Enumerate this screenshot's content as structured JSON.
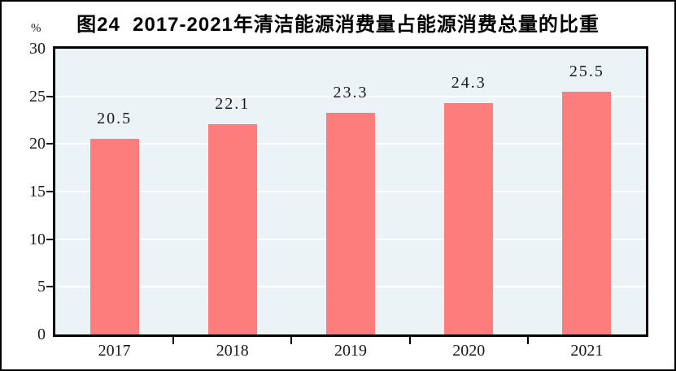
{
  "title": "图24  2017-2021年清洁能源消费量占能源消费总量的比重",
  "unit_label": "%",
  "chart_data": {
    "type": "bar",
    "title": "图24  2017-2021年清洁能源消费量占能源消费总量的比重",
    "categories": [
      "2017",
      "2018",
      "2019",
      "2020",
      "2021"
    ],
    "values": [
      20.5,
      22.1,
      23.3,
      24.3,
      25.5
    ],
    "data_labels": [
      "20.5",
      "22.1",
      "23.3",
      "24.3",
      "25.5"
    ],
    "xlabel": "",
    "ylabel": "%",
    "ylim": [
      0,
      30
    ],
    "yticks": [
      0,
      5,
      10,
      15,
      20,
      25,
      30
    ],
    "grid": true,
    "legend": "none",
    "colors": {
      "bar": "#fd7c7c",
      "plot_background": "#ecf3f7",
      "gridline": "#ffffff",
      "axis": "#000000",
      "text": "#1a1a1a"
    }
  }
}
